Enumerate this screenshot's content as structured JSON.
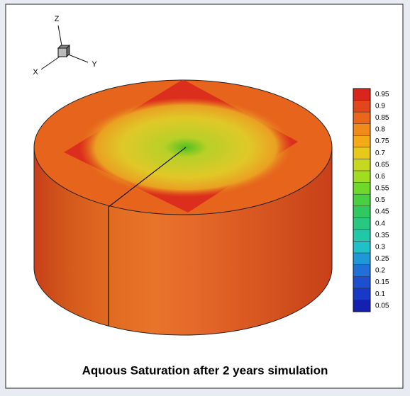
{
  "figure": {
    "title": "Aquous Saturation after 2 years simulation",
    "triad": {
      "z": "Z",
      "y": "Y",
      "x": "X"
    },
    "legend": {
      "labels": [
        "0.95",
        "0.9",
        "0.85",
        "0.8",
        "0.75",
        "0.7",
        "0.65",
        "0.6",
        "0.55",
        "0.5",
        "0.45",
        "0.4",
        "0.35",
        "0.3",
        "0.25",
        "0.2",
        "0.15",
        "0.1",
        "0.05"
      ],
      "colors": [
        "#d8261c",
        "#e2461a",
        "#ea661a",
        "#f08a18",
        "#f2aa16",
        "#e8c818",
        "#c8d820",
        "#a0dc20",
        "#70d828",
        "#48d040",
        "#30c860",
        "#28c880",
        "#20c8a8",
        "#20c0c8",
        "#2098d8",
        "#2070d8",
        "#1c50d0",
        "#1838c8",
        "#1420b0"
      ]
    }
  }
}
